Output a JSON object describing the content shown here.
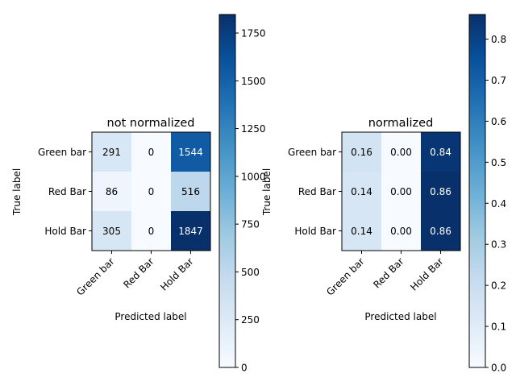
{
  "chart_data": [
    {
      "type": "heatmap",
      "title": "not normalized",
      "xlabel": "Predicted label",
      "ylabel": "True label",
      "x_categories": [
        "Green bar",
        "Red Bar",
        "Hold Bar"
      ],
      "y_categories": [
        "Green bar",
        "Red Bar",
        "Hold Bar"
      ],
      "values": [
        [
          291,
          0,
          1544
        ],
        [
          86,
          0,
          516
        ],
        [
          305,
          0,
          1847
        ]
      ],
      "cell_labels": [
        [
          "291",
          "0",
          "1544"
        ],
        [
          "86",
          "0",
          "516"
        ],
        [
          "305",
          "0",
          "1847"
        ]
      ],
      "color_range": [
        0,
        1847
      ],
      "colormap": "Blues",
      "colorbar_ticks": [
        "0",
        "250",
        "500",
        "750",
        "1000",
        "1250",
        "1500",
        "1750"
      ]
    },
    {
      "type": "heatmap",
      "title": "normalized",
      "xlabel": "Predicted label",
      "ylabel": "True label",
      "x_categories": [
        "Green bar",
        "Red Bar",
        "Hold Bar"
      ],
      "y_categories": [
        "Green bar",
        "Red Bar",
        "Hold Bar"
      ],
      "values": [
        [
          0.16,
          0.0,
          0.84
        ],
        [
          0.14,
          0.0,
          0.86
        ],
        [
          0.14,
          0.0,
          0.86
        ]
      ],
      "cell_labels": [
        [
          "0.16",
          "0.00",
          "0.84"
        ],
        [
          "0.14",
          "0.00",
          "0.86"
        ],
        [
          "0.14",
          "0.00",
          "0.86"
        ]
      ],
      "color_range": [
        0,
        0.86
      ],
      "colormap": "Blues",
      "colorbar_ticks": [
        "0.0",
        "0.1",
        "0.2",
        "0.3",
        "0.4",
        "0.5",
        "0.6",
        "0.7",
        "0.8"
      ]
    }
  ]
}
